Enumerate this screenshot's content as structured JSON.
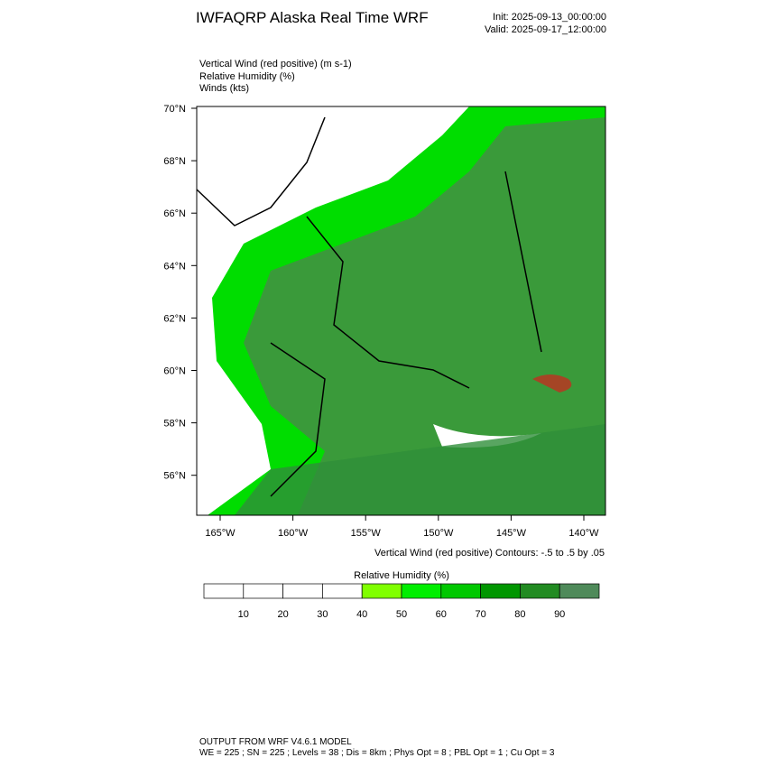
{
  "header": {
    "title": "IWFAQRP Alaska Real Time WRF",
    "init": "Init: 2025-09-13_00:00:00",
    "valid": "Valid: 2025-09-17_12:00:00"
  },
  "fields": [
    "Vertical Wind (red positive)   (m s-1)",
    "Relative Humidity   (%)",
    "Winds   (kts)"
  ],
  "map": {
    "lat_labels": [
      "70°N",
      "68°N",
      "66°N",
      "64°N",
      "62°N",
      "60°N",
      "58°N",
      "56°N"
    ],
    "lon_labels": [
      "165°W",
      "160°W",
      "155°W",
      "150°W",
      "145°W",
      "140°W"
    ],
    "contour_note": "Vertical Wind (red positive) Contours: -.5 to .5 by .05"
  },
  "colorbar": {
    "title": "Relative Humidity  (%)",
    "labels": [
      "10",
      "20",
      "30",
      "40",
      "50",
      "60",
      "70",
      "80",
      "90"
    ],
    "colors": [
      "#ffffff",
      "#ffffff",
      "#ffffff",
      "#ffffff",
      "#80ff00",
      "#00ee00",
      "#00c800",
      "#009600",
      "#228b22",
      "#4f8a5a"
    ]
  },
  "footer": {
    "line1": "OUTPUT FROM WRF V4.6.1 MODEL",
    "line2": "WE = 225 ; SN = 225 ; Levels = 38 ; Dis = 8km ; Phys Opt = 8 ; PBL Opt = 1 ; Cu Opt = 3"
  }
}
